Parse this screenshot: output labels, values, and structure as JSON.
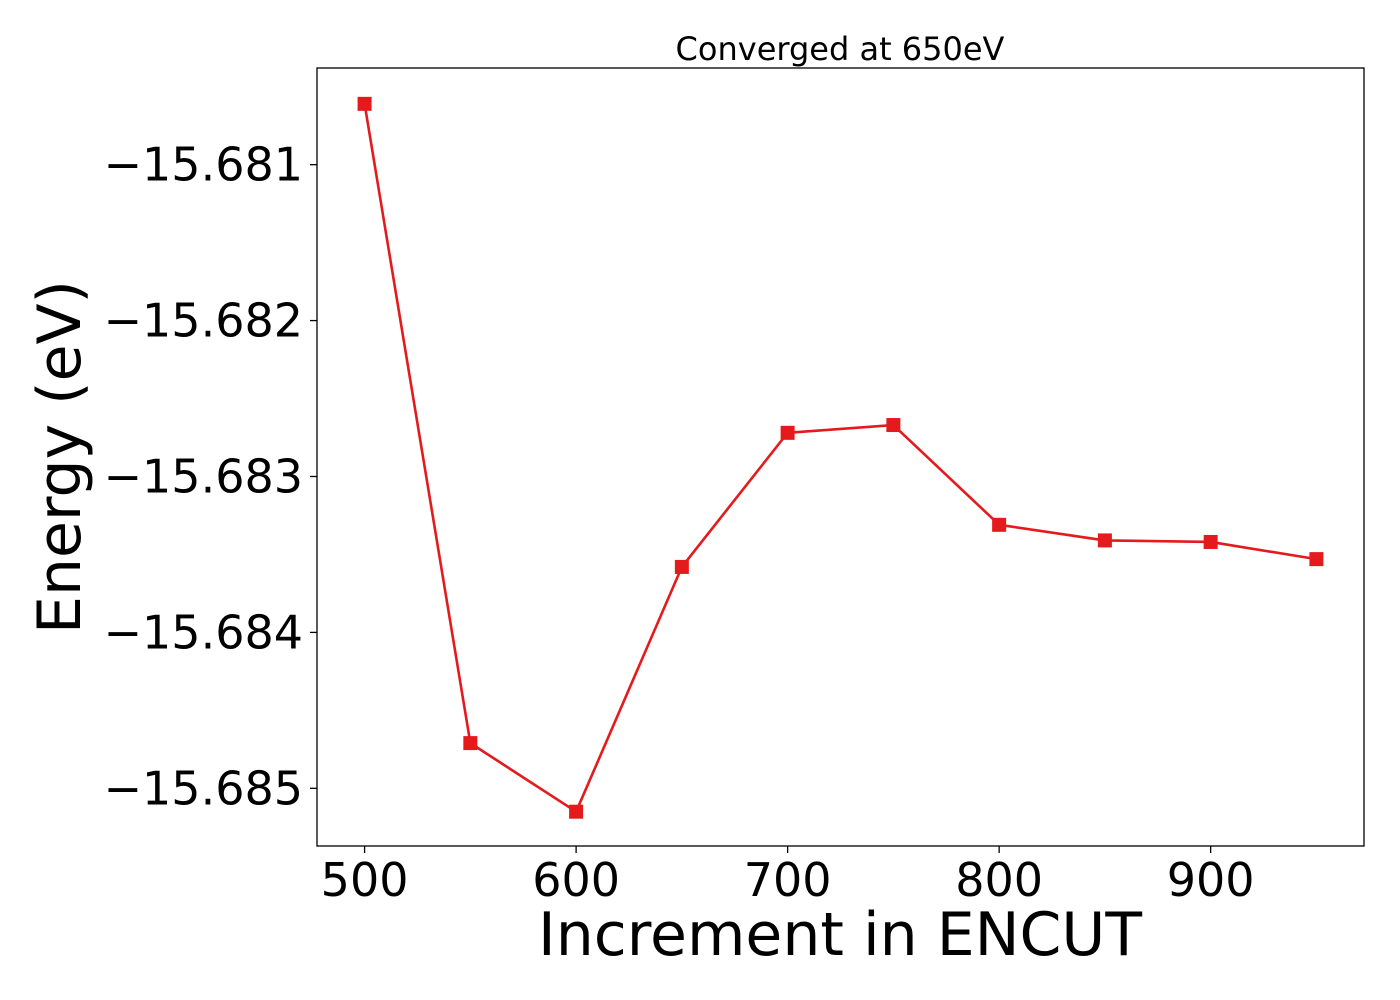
{
  "chart_data": {
    "type": "line",
    "title": "Converged at 650eV",
    "xlabel": "Increment in ENCUT",
    "ylabel": "Energy (eV)",
    "xlim": [
      477.5,
      972.5
    ],
    "ylim": [
      -15.68537,
      -15.68038
    ],
    "xticks": [
      500,
      600,
      700,
      800,
      900
    ],
    "xtick_labels": [
      "500",
      "600",
      "700",
      "800",
      "900"
    ],
    "yticks": [
      -15.681,
      -15.682,
      -15.683,
      -15.684,
      -15.685
    ],
    "ytick_labels": [
      "−15.681",
      "−15.682",
      "−15.683",
      "−15.684",
      "−15.685"
    ],
    "grid": false,
    "legend": "none",
    "marker": "square",
    "series": [
      {
        "color": "#e41a1c",
        "x": [
          500,
          550,
          600,
          650,
          700,
          750,
          800,
          850,
          900,
          950
        ],
        "values": [
          -15.68061,
          -15.68471,
          -15.68515,
          -15.68358,
          -15.68272,
          -15.68267,
          -15.68331,
          -15.68341,
          -15.68342,
          -15.68353
        ]
      }
    ]
  }
}
